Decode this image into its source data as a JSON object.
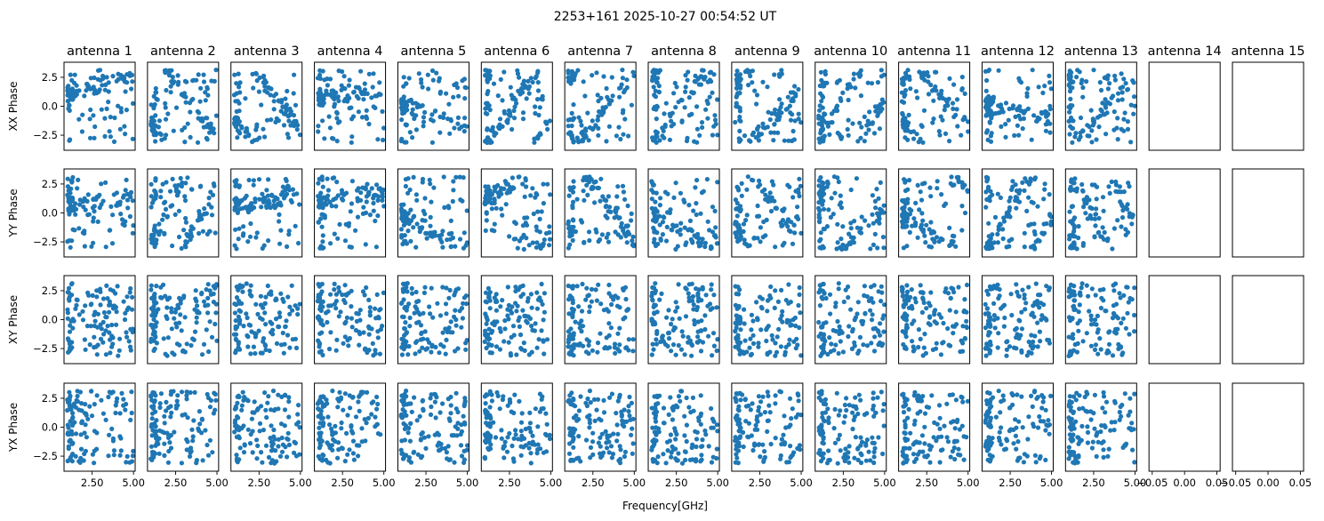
{
  "chart_data": {
    "type": "scatter",
    "title": "2253+161 2025-10-27 00:54:52 UT",
    "xlabel": "Frequency[GHz]",
    "antennas": [
      "antenna 1",
      "antenna 2",
      "antenna 3",
      "antenna 4",
      "antenna 5",
      "antenna 6",
      "antenna 7",
      "antenna 8",
      "antenna 9",
      "antenna 10",
      "antenna 11",
      "antenna 12",
      "antenna 13",
      "antenna 14",
      "antenna 15"
    ],
    "rows": [
      "XX Phase",
      "YY Phase",
      "XY Phase",
      "YX Phase"
    ],
    "antennas_with_data": 13,
    "xlim": [
      0.8,
      5.1
    ],
    "ylim": [
      -3.8,
      3.8
    ],
    "yticks": [
      -2.5,
      0.0,
      2.5
    ],
    "ytick_labels": [
      "−2.5",
      "0.0",
      "2.5"
    ],
    "xticks": [
      2.5,
      5.0
    ],
    "xtick_labels": [
      "2.50",
      "5.00"
    ],
    "first_col_xticks": [
      2.5,
      5.0
    ],
    "first_col_xtick_labels": [
      "2.50",
      "5.00"
    ],
    "empty_xlim": [
      -0.055,
      0.055
    ],
    "empty_xticks": [
      -0.05,
      0.0,
      0.05
    ],
    "empty_xtick_labels": [
      "−0.05",
      "0.00",
      "0.05"
    ],
    "marker_color": "#1f77b4",
    "points_per_panel": 120,
    "freq_range_ghz": [
      1.0,
      5.0
    ],
    "phase_range_rad": [
      -3.14159,
      3.14159
    ]
  }
}
